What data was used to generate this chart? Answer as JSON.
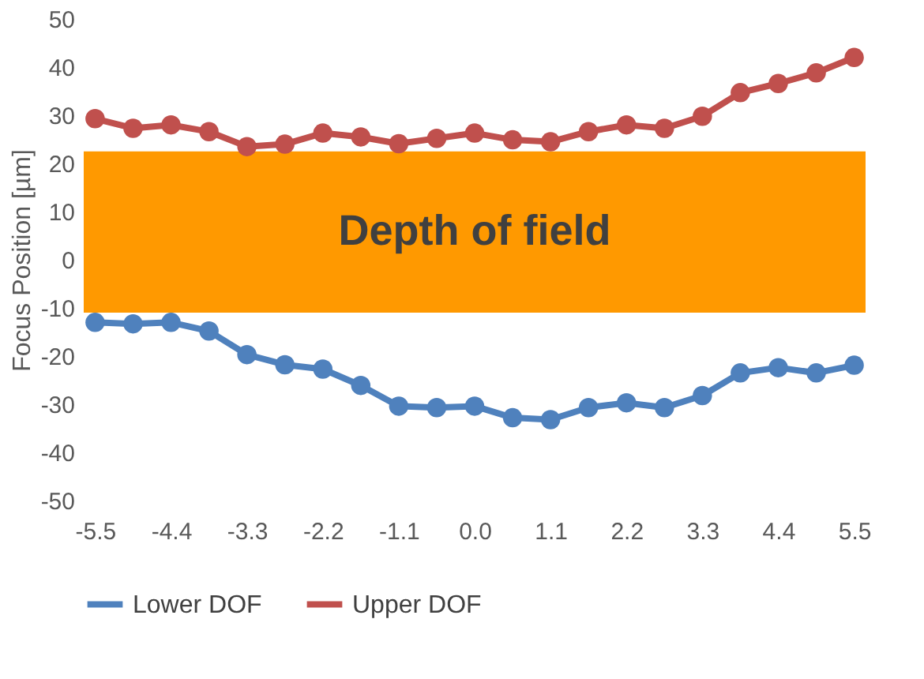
{
  "chart_data": {
    "type": "line",
    "ylabel": "Focus Position [µm]",
    "categories": [
      "-5.5",
      null,
      "-4.4",
      null,
      "-3.3",
      null,
      "-2.2",
      null,
      "-1.1",
      null,
      "0.0",
      null,
      "1.1",
      null,
      "2.2",
      null,
      "3.3",
      null,
      "4.4",
      null,
      "5.5"
    ],
    "series": [
      {
        "name": "Lower DOF",
        "color": "#4f81bd",
        "values": [
          -13.0,
          -13.3,
          -13.0,
          -14.8,
          -19.7,
          -21.8,
          -22.7,
          -26.1,
          -30.4,
          -30.7,
          -30.4,
          -32.8,
          -33.2,
          -30.7,
          -29.7,
          -30.7,
          -28.2,
          -23.5,
          -22.4,
          -23.5,
          -21.9
        ]
      },
      {
        "name": "Upper DOF",
        "color": "#c0504d",
        "values": [
          29.3,
          27.3,
          28.0,
          26.6,
          23.5,
          24.0,
          26.3,
          25.5,
          24.1,
          25.2,
          26.3,
          24.9,
          24.5,
          26.6,
          28.0,
          27.3,
          29.8,
          34.7,
          36.6,
          38.8,
          42.0
        ]
      }
    ],
    "bands": [
      {
        "axis": "y",
        "from": -11,
        "to": 22.5,
        "label": "Depth of field",
        "color": "#ff9900"
      }
    ],
    "ylim": [
      -50,
      50
    ],
    "yticks": [
      -50,
      -40,
      -30,
      -20,
      -10,
      0,
      10,
      20,
      30,
      40,
      50
    ],
    "grid": false,
    "legend": "bottom",
    "marker": "circle",
    "line_style": "solid"
  }
}
